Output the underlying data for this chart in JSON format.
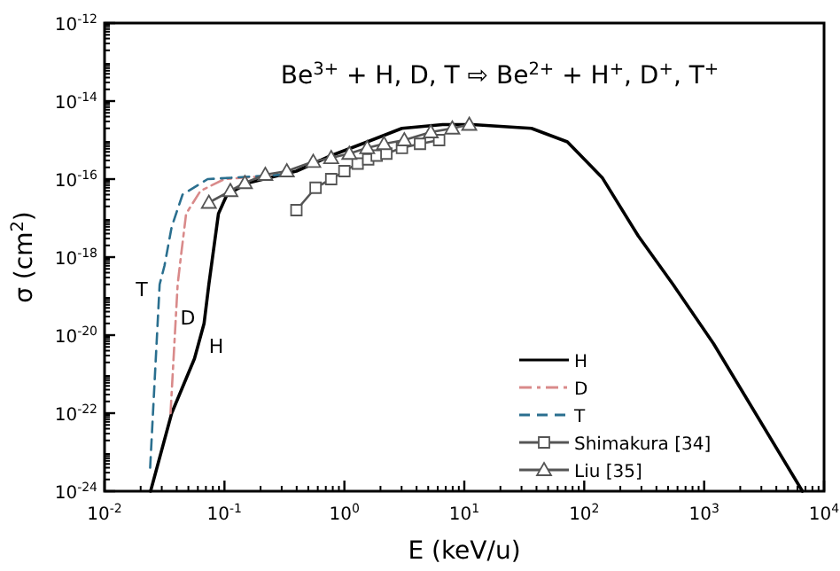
{
  "chart_data": {
    "type": "line",
    "title": "Be$^{3+}$ + H, D, T ⇨ Be$^{2+}$ + H$^{+}$, D$^{+}$, T$^{+}$",
    "xlabel": "E (keV/u)",
    "ylabel": "σ (cm$^{2}$)",
    "log": "xy",
    "legend": "bottom right",
    "grid": false,
    "xlim": [
      0.01,
      10000
    ],
    "xticks": [
      {
        "value": 0.01,
        "label": "10$^{-2}$"
      },
      {
        "value": 0.1,
        "label": "10$^{-1}$"
      },
      {
        "value": 1,
        "label": "10$^{0}$"
      },
      {
        "value": 10,
        "label": "10$^{1}$"
      },
      {
        "value": 100,
        "label": "10$^{2}$"
      },
      {
        "value": 1000,
        "label": "10$^{3}$"
      },
      {
        "value": 10000,
        "label": "10$^{4}$"
      }
    ],
    "ylim": [
      1e-24,
      1e-12
    ],
    "yticks": [
      {
        "value": 1e-24,
        "label": "10$^{-24}$"
      },
      {
        "value": 1e-22,
        "label": "10$^{-22}$"
      },
      {
        "value": 1e-20,
        "label": "10$^{-20}$"
      },
      {
        "value": 1e-18,
        "label": "10$^{-18}$"
      },
      {
        "value": 1e-16,
        "label": "10$^{-16}$"
      },
      {
        "value": 1e-14,
        "label": "10$^{-14}$"
      },
      {
        "value": 1e-12,
        "label": "10$^{-12}$"
      }
    ],
    "series": [
      {
        "name": "H",
        "color": "#000000",
        "line_style": "solid",
        "marker": "none",
        "x": [
          0.0242,
          0.0363,
          0.0562,
          0.0676,
          0.0741,
          0.0891,
          0.105,
          0.158,
          0.398,
          0.776,
          1.55,
          3.02,
          6.61,
          11.7,
          36.3,
          72.4,
          141,
          282,
          550,
          1200,
          6600
        ],
        "values": [
          1e-24,
          1e-22,
          2.5e-21,
          2e-20,
          2e-19,
          1.3e-17,
          4e-17,
          8e-17,
          1.6e-16,
          4e-16,
          9e-16,
          2e-15,
          2.5e-15,
          2.5e-15,
          2e-15,
          9e-16,
          1.1e-16,
          3.5e-18,
          2e-19,
          6e-21,
          1e-24
        ]
      },
      {
        "name": "D",
        "color": "#d98a8a",
        "line_style": "dashdot",
        "marker": "none",
        "x": [
          0.0355,
          0.0407,
          0.0437,
          0.0479,
          0.0631,
          0.1,
          0.219
        ],
        "values": [
          1e-22,
          2e-19,
          1.3e-18,
          1.3e-17,
          5e-17,
          1e-16,
          1.2e-16
        ]
      },
      {
        "name": "T",
        "color": "#2a6f8f",
        "line_style": "dashed",
        "marker": "none",
        "x": [
          0.024,
          0.0288,
          0.0316,
          0.0363,
          0.0447,
          0.0724,
          0.123,
          0.309
        ],
        "values": [
          4e-24,
          2e-19,
          6e-19,
          6e-18,
          4e-17,
          1e-16,
          1.1e-16,
          1.3e-16
        ]
      },
      {
        "name": "Shimakura [34]",
        "color": "#555555",
        "line_style": "solid",
        "marker": "square",
        "x": [
          0.398,
          0.575,
          0.776,
          1.0,
          1.29,
          1.58,
          1.86,
          2.24,
          3.02,
          4.27,
          6.17
        ],
        "values": [
          1.6e-17,
          6e-17,
          1e-16,
          1.6e-16,
          2.5e-16,
          3.2e-16,
          4e-16,
          4.5e-16,
          6.3e-16,
          8e-16,
          1e-15
        ]
      },
      {
        "name": "Liu [35]",
        "color": "#555555",
        "line_style": "solid",
        "marker": "triangle",
        "x": [
          0.0741,
          0.112,
          0.148,
          0.219,
          0.331,
          0.55,
          0.776,
          1.1,
          1.55,
          2.14,
          3.16,
          5.25,
          7.94,
          11
        ],
        "values": [
          2.5e-17,
          5e-17,
          8e-17,
          1.3e-16,
          1.6e-16,
          2.8e-16,
          3.5e-16,
          4.5e-16,
          6.3e-16,
          8e-16,
          1e-15,
          1.6e-15,
          2e-15,
          2.5e-15
        ]
      }
    ],
    "annotations": [
      "T",
      "D",
      "H"
    ]
  }
}
